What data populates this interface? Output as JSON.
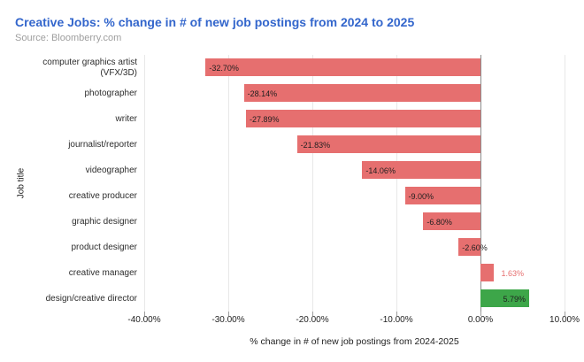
{
  "header": {
    "title": "Creative Jobs: % change in # of new job postings from 2024 to 2025",
    "source": "Source: Bloomberry.com"
  },
  "colors": {
    "title": "#3366cc",
    "source": "#9e9e9e",
    "negative_bar": "#e66f6f",
    "positive_bar": "#3da649",
    "grid": "#e8e8e8",
    "zero_line": "#8c8c8c",
    "tick": "#9e9e9e",
    "bar_label": "#1f1f1f",
    "outside_label": "#e66f6f",
    "axis_text": "#1f1f1f"
  },
  "chart_data": {
    "type": "bar",
    "orientation": "horizontal",
    "title": "Creative Jobs: % change in # of new job postings from 2024 to 2025",
    "xlabel": "% change in # of new job postings from 2024-2025",
    "ylabel": "Job title",
    "xlim": [
      -40,
      10
    ],
    "grid": true,
    "x_ticks": [
      {
        "value": -40,
        "label": "-40.00%"
      },
      {
        "value": -30,
        "label": "-30.00%"
      },
      {
        "value": -20,
        "label": "-20.00%"
      },
      {
        "value": -10,
        "label": "-10.00%"
      },
      {
        "value": 0,
        "label": "0.00%"
      },
      {
        "value": 10,
        "label": "10.00%"
      }
    ],
    "bars": [
      {
        "category": "computer graphics artist (VFX/3D)",
        "value": -32.7,
        "label": "-32.70%",
        "color_key": "negative_bar",
        "label_pos": "inside-left",
        "label_color_key": "bar_label"
      },
      {
        "category": "photographer",
        "value": -28.14,
        "label": "-28.14%",
        "color_key": "negative_bar",
        "label_pos": "inside-left",
        "label_color_key": "bar_label"
      },
      {
        "category": "writer",
        "value": -27.89,
        "label": "-27.89%",
        "color_key": "negative_bar",
        "label_pos": "inside-left",
        "label_color_key": "bar_label"
      },
      {
        "category": "journalist/reporter",
        "value": -21.83,
        "label": "-21.83%",
        "color_key": "negative_bar",
        "label_pos": "inside-left",
        "label_color_key": "bar_label"
      },
      {
        "category": "videographer",
        "value": -14.06,
        "label": "-14.06%",
        "color_key": "negative_bar",
        "label_pos": "inside-left",
        "label_color_key": "bar_label"
      },
      {
        "category": "creative producer",
        "value": -9.0,
        "label": "-9.00%",
        "color_key": "negative_bar",
        "label_pos": "inside-left",
        "label_color_key": "bar_label"
      },
      {
        "category": "graphic designer",
        "value": -6.8,
        "label": "-6.80%",
        "color_key": "negative_bar",
        "label_pos": "inside-left",
        "label_color_key": "bar_label"
      },
      {
        "category": "product designer",
        "value": -2.6,
        "label": "-2.60%",
        "color_key": "negative_bar",
        "label_pos": "inside-left",
        "label_color_key": "bar_label"
      },
      {
        "category": "creative manager",
        "value": 1.63,
        "label": "1.63%",
        "color_key": "negative_bar",
        "label_pos": "outside-right",
        "label_color_key": "outside_label"
      },
      {
        "category": "design/creative director",
        "value": 5.79,
        "label": "5.79%",
        "color_key": "positive_bar",
        "label_pos": "inside-right",
        "label_color_key": "bar_label"
      }
    ]
  }
}
